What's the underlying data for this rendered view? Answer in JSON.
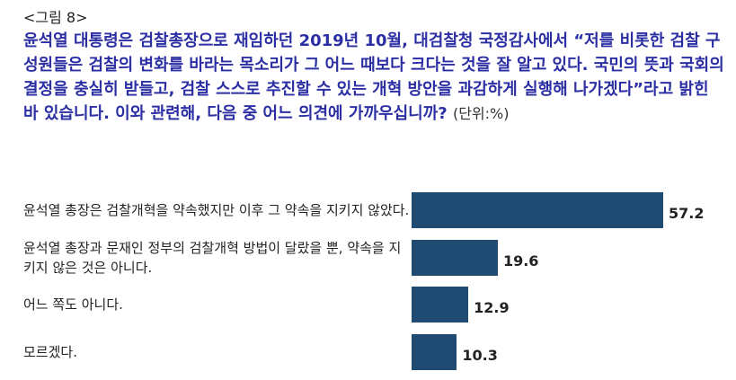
{
  "figure_label": "<그림 8>",
  "question": "윤석열 대통령은 검찰총장으로 재임하던 2019년 10월, 대검찰청 국정감사에서 “저를 비롯한 검찰 구성원들은 검찰의 변화를 바라는 목소리가 그 어느 때보다 크다는 것을 잘 알고 있다. 국민의 뜻과 국회의 결정을 충실히 받들고, 검찰 스스로 추진할 수 있는 개혁 방안을 과감하게 실행해 나가겠다”라고 밝힌 바 있습니다. 이와 관련해, 다음 중 어느 의견에 가까우십니까?",
  "unit": "(단위:%)",
  "chart_data": {
    "type": "bar",
    "orientation": "horizontal",
    "title": "",
    "xlabel": "",
    "ylabel": "",
    "unit": "%",
    "grid": false,
    "legend": false,
    "xlim": [
      0,
      60
    ],
    "categories": [
      "윤석열 총장은 검찰개혁을 약속했지만 이후 그 약속을 지키지 않았다.",
      "윤석열 총장과 문재인 정부의 검찰개혁 방법이 달랐을 뿐, 약속을 지키지 않은 것은 아니다.",
      "어느 쪽도 아니다.",
      "모르겠다."
    ],
    "values": [
      57.2,
      19.6,
      12.9,
      10.3
    ],
    "value_labels": [
      "57.2",
      "19.6",
      "12.9",
      "10.3"
    ],
    "bar_color": "#1f4b72"
  }
}
